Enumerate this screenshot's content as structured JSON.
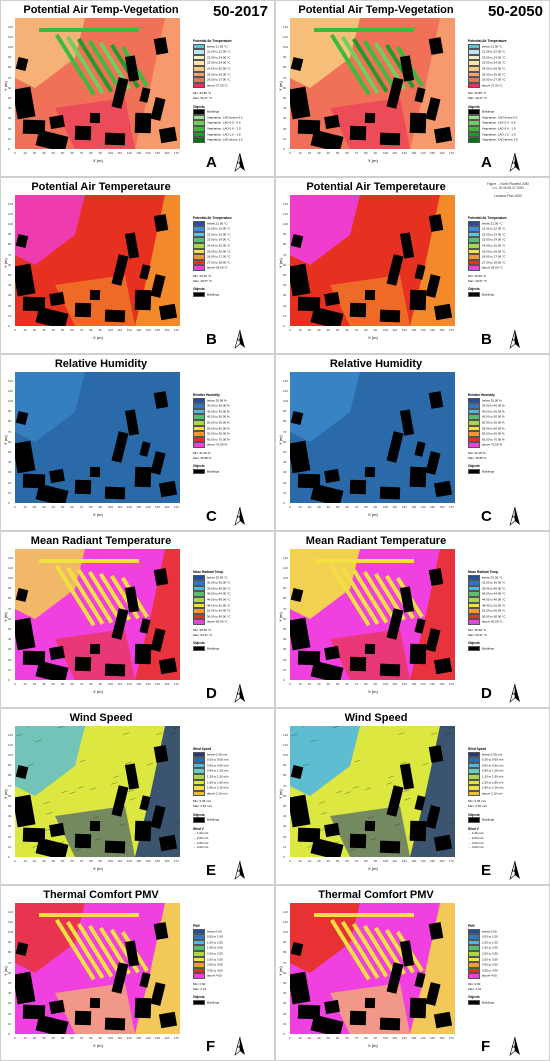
{
  "scenarios": [
    "50-2017",
    "50-2050"
  ],
  "north_label": "N",
  "axis": {
    "x_label": "X (m)",
    "y_label": "Y (m)",
    "x_ticks": [
      "0",
      "10",
      "20",
      "30",
      "40",
      "50",
      "60",
      "70",
      "80",
      "90",
      "100",
      "110",
      "120",
      "130",
      "140",
      "150",
      "160",
      "170"
    ],
    "y_ticks": [
      "0",
      "10",
      "20",
      "30",
      "40",
      "50",
      "60",
      "70",
      "80",
      "90",
      "100",
      "110",
      "120"
    ]
  },
  "right_note": [
    "Figure ... North Planetht 2050",
    "t=1: 30 05:06.47 2050",
    "...",
    "Landuse Plan 2050"
  ],
  "objects_title": "Objects",
  "buildings_label": "Buildings",
  "panels": [
    {
      "letter": "A",
      "title": "Potential Air Temp-Vegetation",
      "legend_title": "Potential Air Temperature",
      "legend": [
        {
          "label": "below 21.00 °C",
          "color": "#58c6d8"
        },
        {
          "label": "21.00 to 22.00 °C",
          "color": "#b8e8f0"
        },
        {
          "label": "22.00 to 23.00 °C",
          "color": "#f2f2c8"
        },
        {
          "label": "23.00 to 24.00 °C",
          "color": "#f6e6a0"
        },
        {
          "label": "24.00 to 25.00 °C",
          "color": "#f8c880"
        },
        {
          "label": "25.00 to 26.00 °C",
          "color": "#f7a070"
        },
        {
          "label": "26.00 to 27.00 °C",
          "color": "#f07058"
        },
        {
          "label": "above 27.00 °C",
          "color": "#e8305a"
        }
      ],
      "minmax": [
        "Min: 20.85 °C",
        "Max: 30.27 °C"
      ],
      "extra_title": "Objects",
      "extra": [
        {
          "label": "Buildings",
          "color": "#000000"
        },
        {
          "label": "Vegetation: LAD below 0.3",
          "color": "#9fe08a"
        },
        {
          "label": "Vegetation: LAD 0.3 - 0.6",
          "color": "#6cd05a"
        },
        {
          "label": "Vegetation: LAD 0.6 - 1.0",
          "color": "#3cba3c"
        },
        {
          "label": "Vegetation: LAD 1.0 - 1.6",
          "color": "#209a28"
        },
        {
          "label": "Vegetation: LAD above 1.6",
          "color": "#0c7018"
        }
      ],
      "map": {
        "bg": "#f07058",
        "zones": [
          "#f8c880",
          "#f7a070",
          "#e8305a"
        ],
        "veg": true
      }
    },
    {
      "letter": "B",
      "title": "Potential Air Temperetaure",
      "legend_title": "Potential Air Temperature",
      "legend": [
        {
          "label": "below 21.00 °C",
          "color": "#1f4ea3"
        },
        {
          "label": "21.00 to 22.00 °C",
          "color": "#3a8fd8"
        },
        {
          "label": "22.00 to 23.00 °C",
          "color": "#5cc6e0"
        },
        {
          "label": "23.00 to 24.00 °C",
          "color": "#56c070"
        },
        {
          "label": "24.00 to 25.00 °C",
          "color": "#a8d848"
        },
        {
          "label": "25.00 to 26.00 °C",
          "color": "#f2e040"
        },
        {
          "label": "26.00 to 27.00 °C",
          "color": "#f39a2e"
        },
        {
          "label": "27.00 to 28.00 °C",
          "color": "#e63020"
        },
        {
          "label": "above 28.00 °C",
          "color": "#f040e0"
        }
      ],
      "minmax": [
        "Min: 26.90 °C",
        "Max: 29.57 °C"
      ],
      "extra_title": "Objects",
      "extra": [
        {
          "label": "Buildings",
          "color": "#000000"
        }
      ],
      "map": {
        "bg": "#e63020",
        "zones": [
          "#f040e0",
          "#f39a2e"
        ],
        "veg": false
      }
    },
    {
      "letter": "C",
      "title": "Relative Humidity",
      "legend_title": "Relative Humidity",
      "legend": [
        {
          "label": "below 35.00 %",
          "color": "#1f4ea3"
        },
        {
          "label": "35.00 to 40.00 %",
          "color": "#2f78c8"
        },
        {
          "label": "40.00 to 45.00 %",
          "color": "#50b8e0"
        },
        {
          "label": "45.00 to 50.00 %",
          "color": "#56c070"
        },
        {
          "label": "50.00 to 55.00 %",
          "color": "#a8d848"
        },
        {
          "label": "55.00 to 60.00 %",
          "color": "#f2e040"
        },
        {
          "label": "60.00 to 65.00 %",
          "color": "#f39a2e"
        },
        {
          "label": "65.00 to 70.00 %",
          "color": "#e63020"
        },
        {
          "label": "above 70.00 %",
          "color": "#f040e0"
        }
      ],
      "minmax": [
        "Min: 31.05 %",
        "Max: 35.88 %"
      ],
      "extra_title": "Objects",
      "extra": [
        {
          "label": "Buildings",
          "color": "#000000"
        }
      ],
      "map": {
        "bg": "#2a6aa8",
        "zones": [
          "#3a86c8",
          "#2a6aa8"
        ],
        "veg": false
      }
    },
    {
      "letter": "D",
      "title": "Mean Radiant Temperature",
      "legend_title": "Mean Radiant Temp.",
      "legend": [
        {
          "label": "below 32.00 °C",
          "color": "#1f4ea3"
        },
        {
          "label": "32.00 to 36.00 °C",
          "color": "#2f78c8"
        },
        {
          "label": "36.00 to 40.00 °C",
          "color": "#50b8e0"
        },
        {
          "label": "40.00 to 44.00 °C",
          "color": "#56c070"
        },
        {
          "label": "44.00 to 48.00 °C",
          "color": "#a8d848"
        },
        {
          "label": "48.00 to 52.00 °C",
          "color": "#f2e040"
        },
        {
          "label": "52.00 to 56.00 °C",
          "color": "#f39a2e"
        },
        {
          "label": "56.00 to 60.00 °C",
          "color": "#e63020"
        },
        {
          "label": "above 60.00 °C",
          "color": "#f040e0"
        }
      ],
      "minmax": [
        "Min: 28.60 °C",
        "Max: 64.37 °C"
      ],
      "extra_title": "Objects",
      "extra": [
        {
          "label": "Buildings",
          "color": "#000000"
        }
      ],
      "map": {
        "bg": "#f040e0",
        "zones": [
          "#f2e040",
          "#e63020"
        ],
        "veg": true
      }
    },
    {
      "letter": "E",
      "title": "Wind Speed",
      "legend_title": "Wind Speed",
      "legend": [
        {
          "label": "below 0.30 m/s",
          "color": "#1f3a78"
        },
        {
          "label": "0.30 to 0.60 m/s",
          "color": "#2f6ab8"
        },
        {
          "label": "0.60 to 0.90 m/s",
          "color": "#50b8e0"
        },
        {
          "label": "0.90 to 1.20 m/s",
          "color": "#66d0c0"
        },
        {
          "label": "1.20 to 1.50 m/s",
          "color": "#a8d848"
        },
        {
          "label": "1.50 to 1.80 m/s",
          "color": "#dce840"
        },
        {
          "label": "1.80 to 2.10 m/s",
          "color": "#f2e040"
        },
        {
          "label": "above 2.10 m/s",
          "color": "#e8c030"
        }
      ],
      "minmax": [
        "Min: 0.05 m/s",
        "Max: 2.52 m/s"
      ],
      "extra_title": "Objects",
      "extra": [
        {
          "label": "Buildings",
          "color": "#000000"
        }
      ],
      "vectors_title": "Wind V",
      "vectors": [
        "1.00 m/s",
        "2.00 m/s",
        "3.00 m/s",
        "4.00 m/s"
      ],
      "map": {
        "bg": "#dce840",
        "zones": [
          "#50b8e0",
          "#1f3a78"
        ],
        "veg": false
      }
    },
    {
      "letter": "F",
      "title": "Thermal Comfort PMV",
      "legend_title": "PMV",
      "legend": [
        {
          "label": "below 0.50",
          "color": "#1f4ea3"
        },
        {
          "label": "0.50 to 1.00",
          "color": "#2f78c8"
        },
        {
          "label": "1.00 to 1.50",
          "color": "#50b8e0"
        },
        {
          "label": "1.50 to 2.00",
          "color": "#56c070"
        },
        {
          "label": "2.00 to 2.50",
          "color": "#a8d848"
        },
        {
          "label": "2.50 to 3.00",
          "color": "#f2e040"
        },
        {
          "label": "3.00 to 3.50",
          "color": "#f39a2e"
        },
        {
          "label": "3.50 to 4.00",
          "color": "#e63020"
        },
        {
          "label": "above 4.00",
          "color": "#f040e0"
        }
      ],
      "minmax": [
        "Min: 0.90",
        "Max: 4.31"
      ],
      "extra_title": "Objects",
      "extra": [
        {
          "label": "Buildings",
          "color": "#000000"
        }
      ],
      "map": {
        "bg": "#f040e0",
        "zones": [
          "#e63020",
          "#f2e040"
        ],
        "veg": true
      }
    }
  ]
}
